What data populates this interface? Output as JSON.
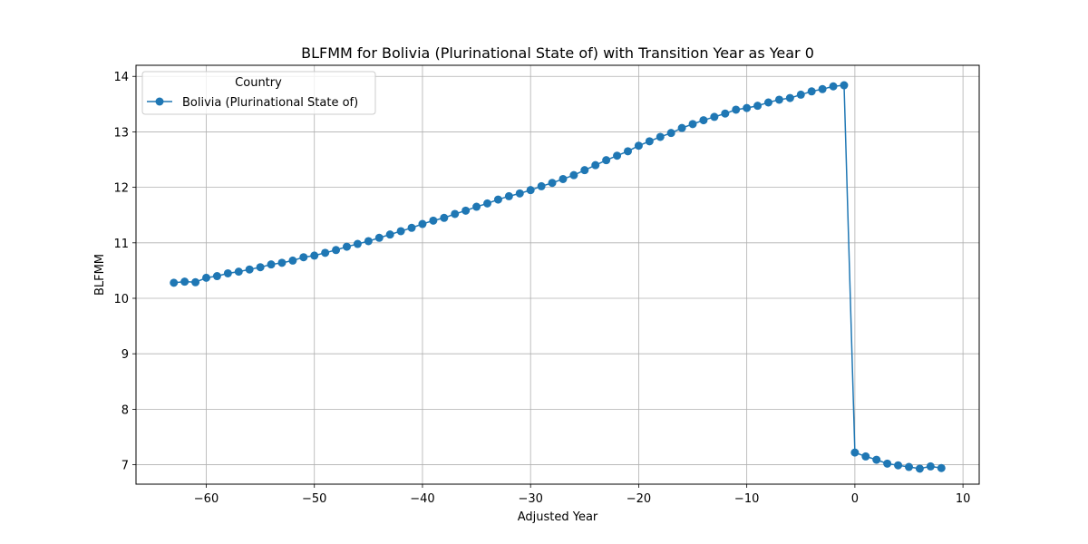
{
  "chart_data": {
    "type": "line",
    "title": "BLFMM for Bolivia (Plurinational State of) with Transition Year as Year 0",
    "xlabel": "Adjusted Year",
    "ylabel": "BLFMM",
    "xlim": [
      -66.5,
      11.5
    ],
    "ylim": [
      6.65,
      14.2
    ],
    "xticks": [
      -60,
      -50,
      -40,
      -30,
      -20,
      -10,
      0,
      10
    ],
    "xtick_labels": [
      "−60",
      "−50",
      "−40",
      "−30",
      "−20",
      "−10",
      "0",
      "10"
    ],
    "yticks": [
      7,
      8,
      9,
      10,
      11,
      12,
      13,
      14
    ],
    "ytick_labels": [
      "7",
      "8",
      "9",
      "10",
      "11",
      "12",
      "13",
      "14"
    ],
    "grid": true,
    "legend": {
      "title": "Country",
      "placement": "top-left",
      "entries": [
        "Bolivia (Plurinational State of)"
      ]
    },
    "series": [
      {
        "name": "Bolivia (Plurinational State of)",
        "color": "#1f77b4",
        "marker": "circle",
        "x": [
          -63,
          -62,
          -61,
          -60,
          -59,
          -58,
          -57,
          -56,
          -55,
          -54,
          -53,
          -52,
          -51,
          -50,
          -49,
          -48,
          -47,
          -46,
          -45,
          -44,
          -43,
          -42,
          -41,
          -40,
          -39,
          -38,
          -37,
          -36,
          -35,
          -34,
          -33,
          -32,
          -31,
          -30,
          -29,
          -28,
          -27,
          -26,
          -25,
          -24,
          -23,
          -22,
          -21,
          -20,
          -19,
          -18,
          -17,
          -16,
          -15,
          -14,
          -13,
          -12,
          -11,
          -10,
          -9,
          -8,
          -7,
          -6,
          -5,
          -4,
          -3,
          -2,
          -1,
          0,
          1,
          2,
          3,
          4,
          5,
          6,
          7,
          8
        ],
        "y": [
          10.28,
          10.3,
          10.29,
          10.37,
          10.4,
          10.45,
          10.48,
          10.52,
          10.56,
          10.61,
          10.64,
          10.68,
          10.74,
          10.77,
          10.82,
          10.87,
          10.93,
          10.98,
          11.03,
          11.09,
          11.15,
          11.21,
          11.27,
          11.34,
          11.4,
          11.45,
          11.52,
          11.58,
          11.65,
          11.71,
          11.78,
          11.84,
          11.89,
          11.95,
          12.02,
          12.08,
          12.15,
          12.22,
          12.31,
          12.4,
          12.49,
          12.57,
          12.65,
          12.75,
          12.83,
          12.91,
          12.98,
          13.07,
          13.14,
          13.21,
          13.27,
          13.33,
          13.4,
          13.43,
          13.47,
          13.53,
          13.58,
          13.61,
          13.67,
          13.73,
          13.77,
          13.82,
          13.84,
          7.22,
          7.15,
          7.09,
          7.02,
          6.99,
          6.96,
          6.93,
          6.97,
          6.94
        ]
      }
    ]
  }
}
